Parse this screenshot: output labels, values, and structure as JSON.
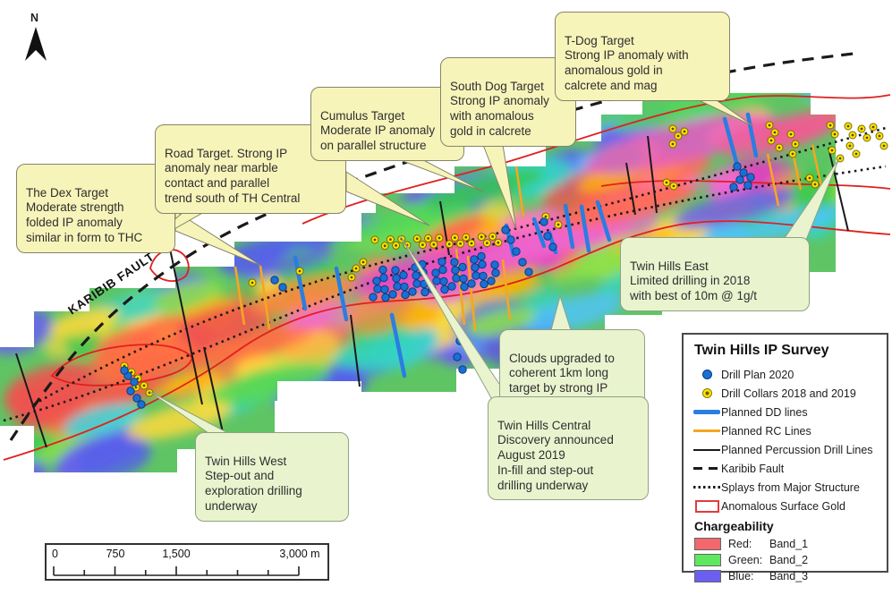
{
  "compass": {
    "label": "N"
  },
  "map_labels": {
    "karibib_fault": "KARIBIB FAULT"
  },
  "callouts": [
    {
      "id": "dex-target",
      "text": "The Dex Target\nModerate strength\nfolded IP anomaly\nsimilar in form to THC"
    },
    {
      "id": "road-target",
      "text": "Road Target. Strong IP\nanomaly near marble\ncontact and parallel\ntrend south of TH Central"
    },
    {
      "id": "cumulus-target",
      "text": "Cumulus Target\nModerate IP anomaly\non parallel structure"
    },
    {
      "id": "south-dog-target",
      "text": "South Dog Target\nStrong IP anomaly\nwith anomalous\ngold in calcrete"
    },
    {
      "id": "t-dog-target",
      "text": "T-Dog Target\nStrong IP anomaly with\nanomalous gold in\ncalcrete and mag"
    },
    {
      "id": "twin-hills-east",
      "text": "Twin Hills East\nLimited drilling in 2018\nwith best of 10m @ 1g/t"
    },
    {
      "id": "clouds-target",
      "text": "Clouds upgraded to\ncoherent 1km long\ntarget by strong IP\nanomaly"
    },
    {
      "id": "twin-hills-central",
      "text": "Twin Hills Central\nDiscovery announced\nAugust 2019\nIn-fill and step-out\ndrilling underway"
    },
    {
      "id": "twin-hills-west",
      "text": "Twin Hills West\nStep-out and\nexploration drilling\nunderway"
    }
  ],
  "legend": {
    "title": "Twin Hills IP Survey",
    "items": [
      {
        "id": "drill-plan-2020",
        "label": "Drill Plan 2020",
        "marker": "blue-dot",
        "color": "#1a6fd4"
      },
      {
        "id": "drill-collars",
        "label": "Drill Collars 2018 and 2019",
        "marker": "yellow-dot",
        "color": "#ffe600"
      },
      {
        "id": "planned-dd-lines",
        "label": "Planned DD lines",
        "marker": "blue-line",
        "color": "#2a7de1"
      },
      {
        "id": "planned-rc-lines",
        "label": "Planned RC Lines",
        "marker": "orange-line",
        "color": "#f5a623"
      },
      {
        "id": "planned-percussion",
        "label": "Planned Percussion Drill Lines",
        "marker": "black-line",
        "color": "#1a1a1a"
      },
      {
        "id": "karibib-fault",
        "label": "Karibib Fault",
        "marker": "dashed-line",
        "color": "#1a1a1a"
      },
      {
        "id": "splays",
        "label": "Splays from Major Structure",
        "marker": "dotted-line",
        "color": "#1a1a1a"
      },
      {
        "id": "anomalous-surface-gold",
        "label": "Anomalous Surface Gold",
        "marker": "red-outline-box",
        "color": "#e23b3b"
      }
    ],
    "chargeability": {
      "heading": "Chargeability",
      "rows": [
        {
          "name": "Red:",
          "band": "Band_1",
          "color": "#f2686c"
        },
        {
          "name": "Green:",
          "band": "Band_2",
          "color": "#5ee860"
        },
        {
          "name": "Blue:",
          "band": "Band_3",
          "color": "#6a5ff0"
        }
      ]
    }
  },
  "scalebar": {
    "ticks": [
      "0",
      "750",
      "1,500",
      "3,000 m"
    ]
  }
}
